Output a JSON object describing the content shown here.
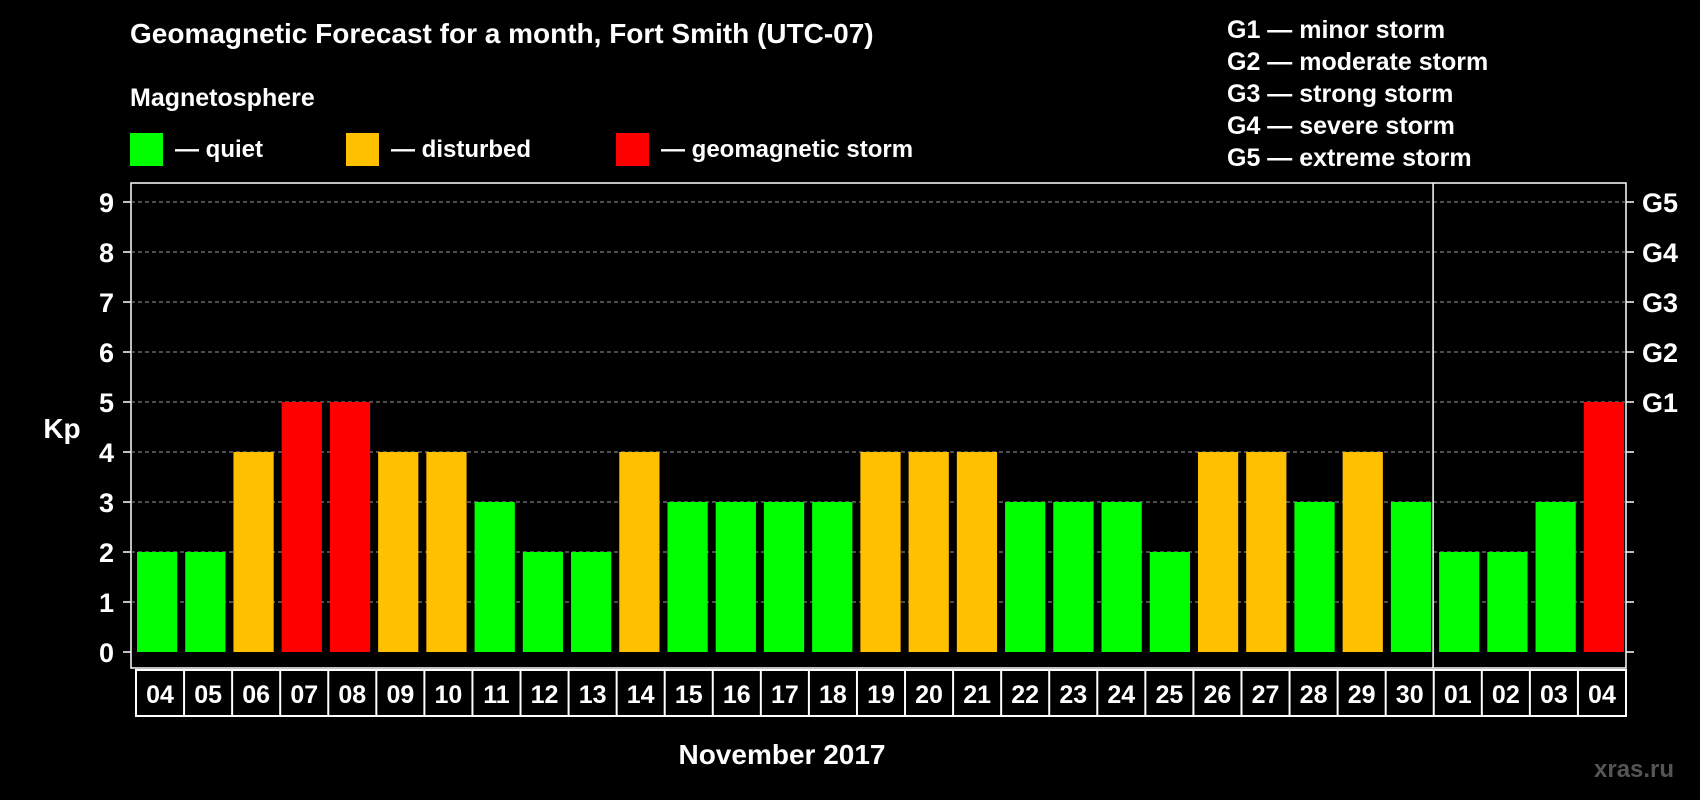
{
  "title": "Geomagnetic Forecast for a month, Fort Smith (UTC-07)",
  "legend": {
    "heading": "Magnetosphere",
    "items": [
      {
        "label": "— quiet",
        "color": "#00ff00"
      },
      {
        "label": "— disturbed",
        "color": "#ffc000"
      },
      {
        "label": "— geomagnetic storm",
        "color": "#ff0000"
      }
    ]
  },
  "storm_scale": [
    "G1 — minor storm",
    "G2 — moderate storm",
    "G3 — strong storm",
    "G4 — severe storm",
    "G5 — extreme storm"
  ],
  "watermark": "xras.ru",
  "chart_data": {
    "type": "bar",
    "ylabel": "Kp",
    "xlabel": "November 2017",
    "ylim": [
      0,
      9
    ],
    "yticks": [
      0,
      1,
      2,
      3,
      4,
      5,
      6,
      7,
      8,
      9
    ],
    "right_axis_labels": [
      {
        "value": 5,
        "label": "G1"
      },
      {
        "value": 6,
        "label": "G2"
      },
      {
        "value": 7,
        "label": "G3"
      },
      {
        "value": 8,
        "label": "G4"
      },
      {
        "value": 9,
        "label": "G5"
      }
    ],
    "grid": "horizontal dashed",
    "month_separator_after": "30",
    "categories": [
      "04",
      "05",
      "06",
      "07",
      "08",
      "09",
      "10",
      "11",
      "12",
      "13",
      "14",
      "15",
      "16",
      "17",
      "18",
      "19",
      "20",
      "21",
      "22",
      "23",
      "24",
      "25",
      "26",
      "27",
      "28",
      "29",
      "30",
      "01",
      "02",
      "03",
      "04"
    ],
    "values": [
      2,
      2,
      4,
      5,
      5,
      4,
      4,
      3,
      2,
      2,
      4,
      3,
      3,
      3,
      3,
      4,
      4,
      4,
      3,
      3,
      3,
      2,
      4,
      4,
      3,
      4,
      3,
      2,
      2,
      3,
      5
    ],
    "colors": {
      "quiet": "#00ff00",
      "disturbed": "#ffc000",
      "storm": "#ff0000"
    }
  }
}
